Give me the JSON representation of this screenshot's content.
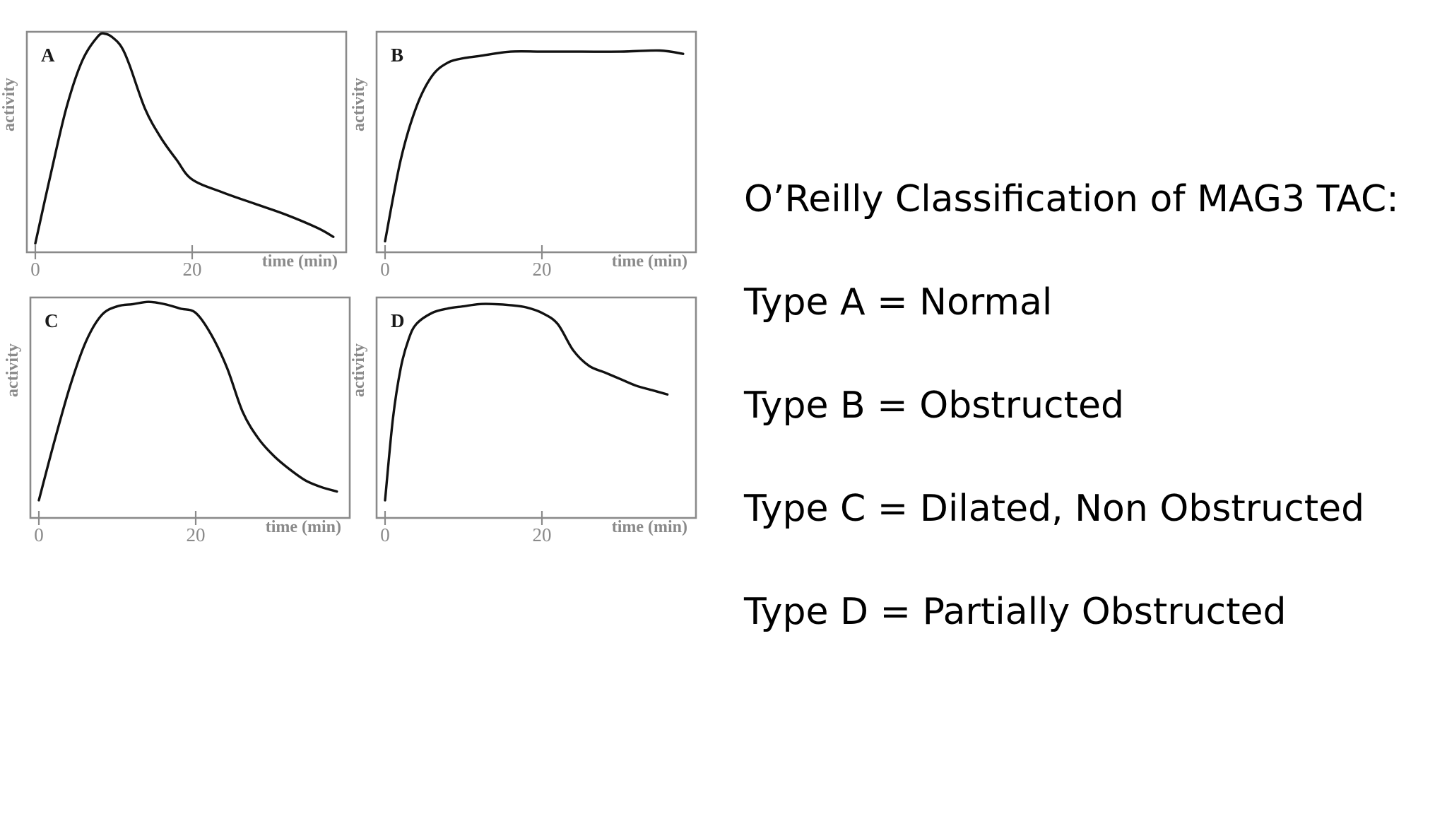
{
  "slide": {
    "heading": "O’Reilly Classification of MAG3 TAC:",
    "types": [
      "Type A = Normal",
      "Type B = Obstructed",
      "Type C = Dilated, Non Obstructed",
      "Type D = Partially Obstructed"
    ]
  },
  "chart_data": [
    {
      "type": "line",
      "label": "A",
      "xlabel": "time (min)",
      "ylabel": "activity",
      "x_ticks": [
        0,
        20
      ],
      "x": [
        0,
        2,
        4,
        6,
        8,
        9,
        10,
        11,
        12,
        14,
        16,
        18,
        20,
        24,
        28,
        32,
        36,
        38
      ],
      "series": [
        {
          "values": [
            0.04,
            0.36,
            0.66,
            0.87,
            0.98,
            0.99,
            0.97,
            0.93,
            0.85,
            0.65,
            0.52,
            0.42,
            0.33,
            0.27,
            0.22,
            0.17,
            0.11,
            0.07
          ]
        }
      ]
    },
    {
      "type": "line",
      "label": "B",
      "xlabel": "time (min)",
      "ylabel": "activity",
      "x_ticks": [
        0,
        20
      ],
      "x": [
        0,
        2,
        4,
        6,
        8,
        10,
        12,
        16,
        20,
        25,
        30,
        35,
        38
      ],
      "series": [
        {
          "values": [
            0.05,
            0.42,
            0.66,
            0.8,
            0.86,
            0.88,
            0.89,
            0.91,
            0.91,
            0.91,
            0.91,
            0.915,
            0.9
          ]
        }
      ]
    },
    {
      "type": "line",
      "label": "C",
      "xlabel": "time (min)",
      "ylabel": "activity",
      "x_ticks": [
        0,
        20
      ],
      "x": [
        0,
        2,
        4,
        6,
        8,
        10,
        12,
        14,
        16,
        18,
        20,
        22,
        24,
        26,
        28,
        30,
        32,
        34,
        36,
        38
      ],
      "series": [
        {
          "values": [
            0.08,
            0.35,
            0.6,
            0.8,
            0.92,
            0.96,
            0.97,
            0.98,
            0.97,
            0.95,
            0.93,
            0.83,
            0.68,
            0.48,
            0.36,
            0.28,
            0.22,
            0.17,
            0.14,
            0.12
          ]
        }
      ]
    },
    {
      "type": "line",
      "label": "D",
      "xlabel": "time (min)",
      "ylabel": "activity",
      "x_ticks": [
        0,
        20
      ],
      "x": [
        0,
        1,
        2,
        3,
        4,
        6,
        8,
        10,
        12,
        14,
        16,
        18,
        20,
        22,
        24,
        26,
        28,
        30,
        32,
        34,
        36
      ],
      "series": [
        {
          "values": [
            0.08,
            0.45,
            0.68,
            0.81,
            0.88,
            0.93,
            0.95,
            0.96,
            0.97,
            0.97,
            0.965,
            0.955,
            0.93,
            0.88,
            0.76,
            0.69,
            0.66,
            0.63,
            0.6,
            0.58,
            0.56
          ]
        }
      ]
    }
  ]
}
